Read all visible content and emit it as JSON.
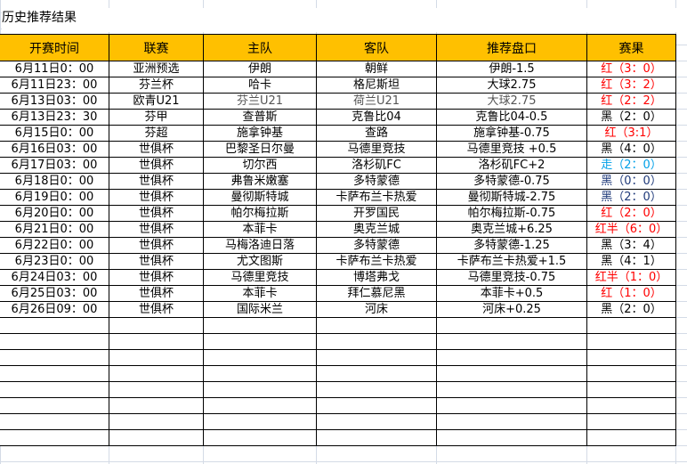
{
  "title": "历史推荐结果",
  "headers": [
    "开赛时间",
    "联赛",
    "主队",
    "客队",
    "推荐盘口",
    "赛果"
  ],
  "rows": [
    {
      "time": "6月11日0：00",
      "league": "亚洲预选",
      "home": "伊朗",
      "away": "朝鲜",
      "pick": "伊朗-1.5",
      "result": "红（3：0）",
      "result_color": "red"
    },
    {
      "time": "6月11日23：00",
      "league": "芬兰杯",
      "home": "哈卡",
      "away": "格尼斯坦",
      "pick": "大球2.75",
      "result": "红（3：2）",
      "result_color": "red"
    },
    {
      "time": "6月13日03：00",
      "league": "欧青U21",
      "home": "芬兰U21",
      "away": "荷兰U21",
      "pick": "大球2.75",
      "result": "红（2：2）",
      "result_color": "red"
    },
    {
      "time": "6月13日23：30",
      "league": "芬甲",
      "home": "查普斯",
      "away": "克鲁比04",
      "pick": "克鲁比04-0.5",
      "result": "黑（2：0）",
      "result_color": "black"
    },
    {
      "time": "6月15日0：00",
      "league": "芬超",
      "home": "施拿钟基",
      "away": "查路",
      "pick": "施拿钟基-0.75",
      "result": "红（3:1）",
      "result_color": "red"
    },
    {
      "time": "6月16日03：00",
      "league": "世俱杯",
      "home": "巴黎圣日尔曼",
      "away": "马德里竞技",
      "pick": "马德里竞技 +0.5",
      "result": "黑（4：0）",
      "result_color": "black"
    },
    {
      "time": "6月17日03：00",
      "league": "世俱杯",
      "home": "切尔西",
      "away": "洛杉矶FC",
      "pick": "洛杉矶FC+2",
      "result": "走（2：0）",
      "result_color": "lightblue"
    },
    {
      "time": "6月18日0：00",
      "league": "世俱杯",
      "home": "弗鲁米嫩塞",
      "away": "多特蒙德",
      "pick": "多特蒙德-0.75",
      "result": "黑（0：0）",
      "result_color": "blue"
    },
    {
      "time": "6月19日0：00",
      "league": "世俱杯",
      "home": "曼彻斯特城",
      "away": "卡萨布兰卡热爱",
      "pick": "曼彻斯特城-2.75",
      "result": "黑（2：0）",
      "result_color": "blue"
    },
    {
      "time": "6月20日0：00",
      "league": "世俱杯",
      "home": "帕尔梅拉斯",
      "away": "开罗国民",
      "pick": "帕尔梅拉斯-0.75",
      "result": "红（2：0）",
      "result_color": "red"
    },
    {
      "time": "6月21日0：00",
      "league": "世俱杯",
      "home": "本菲卡",
      "away": "奥克兰城",
      "pick": "奥克兰城+6.25",
      "result": "红半（6：0）",
      "result_color": "red"
    },
    {
      "time": "6月22日0：00",
      "league": "世俱杯",
      "home": "马梅洛迪日落",
      "away": "多特蒙德",
      "pick": "多特蒙德-1.25",
      "result": "黑（3：4）",
      "result_color": "black"
    },
    {
      "time": "6月23日0：00",
      "league": "世俱杯",
      "home": "尤文图斯",
      "away": "卡萨布兰卡热爱",
      "pick": "卡萨布兰卡热爱+1.5",
      "result": "黑（4：1）",
      "result_color": "black"
    },
    {
      "time": "6月24日03：00",
      "league": "世俱杯",
      "home": "马德里竞技",
      "away": "博塔弗戈",
      "pick": "马德里竞技-0.75",
      "result": "红半（1：0）",
      "result_color": "red"
    },
    {
      "time": "6月25日03：00",
      "league": "世俱杯",
      "home": "本菲卡",
      "away": "拜仁慕尼黑",
      "pick": "本菲卡+0.5",
      "result": "红（1：0）",
      "result_color": "red"
    },
    {
      "time": "6月26日09：00",
      "league": "世俱杯",
      "home": "国际米兰",
      "away": "河床",
      "pick": "河床+0.25",
      "result": "黑（2：0）",
      "result_color": "black"
    }
  ],
  "colors": {
    "header_bg": "#ffc000",
    "red": "#ff0000",
    "blue": "#1f3a7a",
    "lightblue": "#00a0e8",
    "black": "#000000"
  }
}
